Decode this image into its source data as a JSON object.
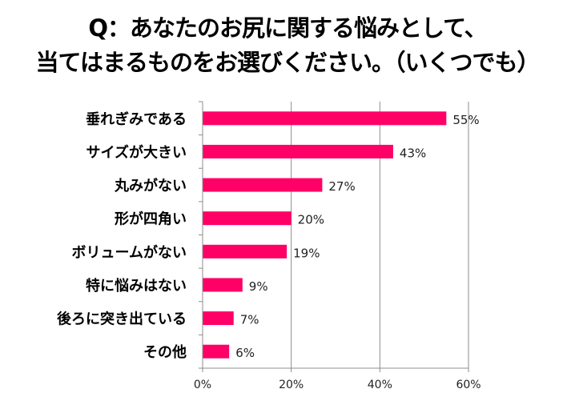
{
  "chart_data": {
    "type": "bar",
    "orientation": "horizontal",
    "title_lines": [
      "Q：あなたのお尻に関する悩みとして、",
      "当てはまるものをお選びください。（いくつでも）"
    ],
    "categories": [
      "垂れぎみである",
      "サイズが大きい",
      "丸みがない",
      "形が四角い",
      "ボリュームがない",
      "特に悩みはない",
      "後ろに突き出ている",
      "その他"
    ],
    "values": [
      55,
      43,
      27,
      20,
      19,
      9,
      7,
      6
    ],
    "data_labels": [
      "55%",
      "43%",
      "27%",
      "20%",
      "19%",
      "9%",
      "7%",
      "6%"
    ],
    "xlim": [
      0,
      60
    ],
    "x_ticks": [
      0,
      20,
      40,
      60
    ],
    "x_tick_labels": [
      "0%",
      "20%",
      "40%",
      "60%"
    ],
    "grid": true,
    "bar_color": "#FF0066",
    "unit": "%"
  }
}
